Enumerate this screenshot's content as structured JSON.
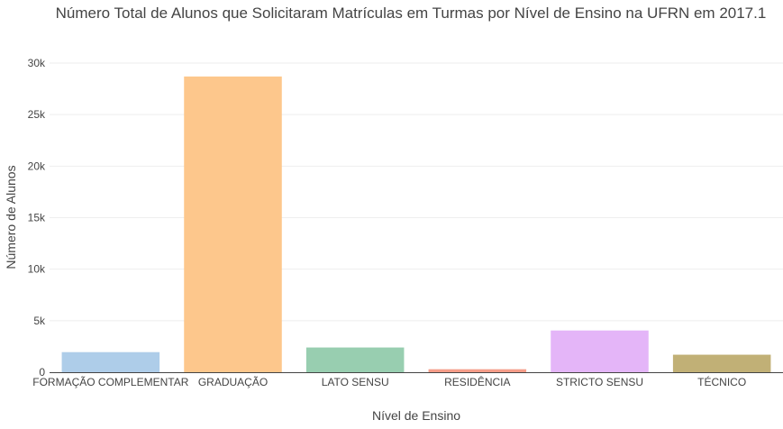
{
  "chart_data": {
    "type": "bar",
    "title": "Número Total de Alunos que Solicitaram Matrículas em Turmas por Nível de Ensino na UFRN em 2017.1",
    "xlabel": "Nível de Ensino",
    "ylabel": "Número de Alunos",
    "categories": [
      "FORMAÇÃO COMPLEMENTAR",
      "GRADUAÇÃO",
      "LATO SENSU",
      "RESIDÊNCIA",
      "STRICTO SENSU",
      "TÉCNICO"
    ],
    "values": [
      1950,
      28700,
      2400,
      290,
      4050,
      1700
    ],
    "colors": [
      "#aecde9",
      "#fdc78c",
      "#98ceb0",
      "#f59d89",
      "#e4b5f8",
      "#c1b076"
    ],
    "ylim": [
      0,
      30000
    ],
    "yticks": [
      0,
      5000,
      10000,
      15000,
      20000,
      25000,
      30000
    ],
    "ytick_labels": [
      "0",
      "5k",
      "10k",
      "15k",
      "20k",
      "25k",
      "30k"
    ],
    "grid": true,
    "legend": false
  }
}
